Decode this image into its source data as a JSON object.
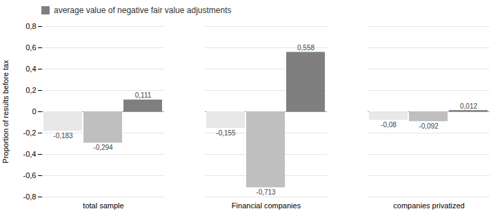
{
  "chart_data": {
    "type": "bar",
    "categories": [
      "total sample",
      "Financial companies",
      "companies privatized"
    ],
    "series": [
      {
        "color": "#e8e8e8",
        "values": [
          -0.183,
          -0.155,
          -0.08
        ],
        "value_labels": [
          "-0,183",
          "-0,155",
          "-0,08"
        ]
      },
      {
        "color": "#bfbfbf",
        "values": [
          -0.294,
          -0.713,
          -0.092
        ],
        "value_labels": [
          "-0,294",
          "-0,713",
          "-0,092"
        ]
      },
      {
        "name": "average value of negative fair value adjustments",
        "color": "#7f7f7f",
        "values": [
          0.111,
          0.558,
          0.012
        ],
        "value_labels": [
          "0,111",
          "0,558",
          "0,012"
        ]
      }
    ],
    "ylabel": "Proportion of results before tax",
    "ylim": [
      -0.8,
      0.8
    ],
    "yticks": [
      {
        "value": -0.8,
        "label": "-0,8"
      },
      {
        "value": -0.6,
        "label": "-0,6"
      },
      {
        "value": -0.4,
        "label": "-0,4"
      },
      {
        "value": -0.2,
        "label": "-0,2"
      },
      0,
      {
        "value": 0.2,
        "label": "0,2"
      },
      {
        "value": 0.4,
        "label": "0,4"
      },
      {
        "value": 0.6,
        "label": "0,6"
      },
      {
        "value": 0.8,
        "label": "0,8"
      }
    ],
    "grid": true,
    "legend": "upper-left",
    "data_labels": true
  }
}
